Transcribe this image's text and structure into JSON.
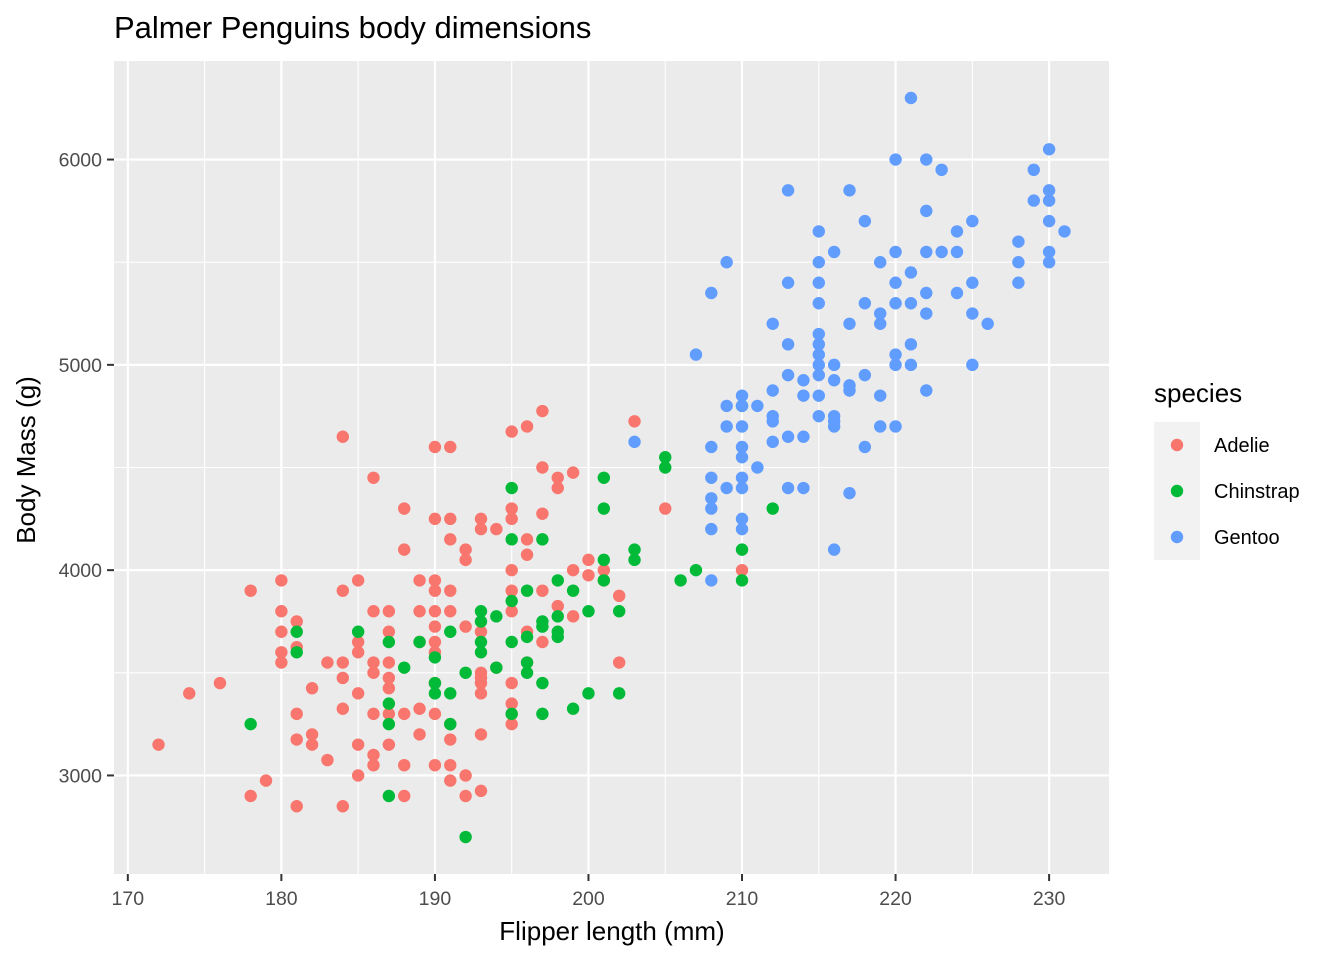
{
  "chart_data": {
    "type": "scatter",
    "title": "Palmer Penguins body dimensions",
    "xlabel": "Flipper length (mm)",
    "ylabel": "Body Mass (g)",
    "xlim": [
      169.1,
      233.9
    ],
    "ylim": [
      2520,
      6480
    ],
    "x_ticks": [
      170,
      180,
      190,
      200,
      210,
      220,
      230
    ],
    "y_ticks": [
      3000,
      4000,
      5000,
      6000
    ],
    "x_tick_labels": [
      "170",
      "180",
      "190",
      "200",
      "210",
      "220",
      "230"
    ],
    "y_tick_labels": [
      "3000",
      "4000",
      "5000",
      "6000"
    ],
    "grid": true,
    "legend": {
      "title": "species",
      "position": "right"
    },
    "series": [
      {
        "name": "Adelie",
        "color": "#F8766D",
        "points": [
          [
            172,
            3150
          ],
          [
            174,
            3400
          ],
          [
            176,
            3450
          ],
          [
            178,
            2900
          ],
          [
            178,
            3900
          ],
          [
            179,
            2975
          ],
          [
            180,
            3550
          ],
          [
            180,
            3600
          ],
          [
            180,
            3700
          ],
          [
            180,
            3800
          ],
          [
            180,
            3950
          ],
          [
            181,
            2850
          ],
          [
            181,
            3175
          ],
          [
            181,
            3300
          ],
          [
            181,
            3625
          ],
          [
            181,
            3750
          ],
          [
            182,
            3150
          ],
          [
            182,
            3200
          ],
          [
            182,
            3425
          ],
          [
            183,
            3075
          ],
          [
            183,
            3550
          ],
          [
            184,
            2850
          ],
          [
            184,
            3325
          ],
          [
            184,
            3475
          ],
          [
            184,
            3550
          ],
          [
            184,
            3900
          ],
          [
            184,
            4650
          ],
          [
            185,
            3000
          ],
          [
            185,
            3150
          ],
          [
            185,
            3400
          ],
          [
            185,
            3600
          ],
          [
            185,
            3650
          ],
          [
            185,
            3950
          ],
          [
            186,
            3050
          ],
          [
            186,
            3100
          ],
          [
            186,
            3300
          ],
          [
            186,
            3500
          ],
          [
            186,
            3550
          ],
          [
            186,
            3800
          ],
          [
            186,
            4450
          ],
          [
            187,
            3150
          ],
          [
            187,
            3300
          ],
          [
            187,
            3425
          ],
          [
            187,
            3475
          ],
          [
            187,
            3550
          ],
          [
            187,
            3700
          ],
          [
            187,
            3800
          ],
          [
            188,
            2900
          ],
          [
            188,
            3050
          ],
          [
            188,
            3300
          ],
          [
            188,
            4100
          ],
          [
            188,
            4300
          ],
          [
            189,
            3200
          ],
          [
            189,
            3325
          ],
          [
            189,
            3650
          ],
          [
            189,
            3800
          ],
          [
            189,
            3950
          ],
          [
            190,
            3050
          ],
          [
            190,
            3300
          ],
          [
            190,
            3450
          ],
          [
            190,
            3600
          ],
          [
            190,
            3650
          ],
          [
            190,
            3725
          ],
          [
            190,
            3800
          ],
          [
            190,
            3900
          ],
          [
            190,
            3950
          ],
          [
            190,
            4250
          ],
          [
            190,
            4600
          ],
          [
            191,
            2975
          ],
          [
            191,
            3050
          ],
          [
            191,
            3175
          ],
          [
            191,
            3250
          ],
          [
            191,
            3800
          ],
          [
            191,
            3900
          ],
          [
            191,
            4150
          ],
          [
            191,
            4250
          ],
          [
            191,
            4600
          ],
          [
            192,
            2900
          ],
          [
            192,
            3000
          ],
          [
            192,
            3725
          ],
          [
            192,
            4050
          ],
          [
            192,
            4100
          ],
          [
            193,
            2925
          ],
          [
            193,
            3200
          ],
          [
            193,
            3400
          ],
          [
            193,
            3450
          ],
          [
            193,
            3475
          ],
          [
            193,
            3500
          ],
          [
            193,
            3700
          ],
          [
            193,
            4200
          ],
          [
            193,
            4250
          ],
          [
            194,
            3525
          ],
          [
            194,
            4200
          ],
          [
            195,
            3250
          ],
          [
            195,
            3300
          ],
          [
            195,
            3350
          ],
          [
            195,
            3450
          ],
          [
            195,
            3800
          ],
          [
            195,
            3900
          ],
          [
            195,
            4000
          ],
          [
            195,
            4250
          ],
          [
            195,
            4300
          ],
          [
            195,
            4675
          ],
          [
            196,
            3550
          ],
          [
            196,
            3700
          ],
          [
            196,
            4075
          ],
          [
            196,
            4150
          ],
          [
            196,
            4700
          ],
          [
            197,
            3650
          ],
          [
            197,
            3900
          ],
          [
            197,
            4275
          ],
          [
            197,
            4500
          ],
          [
            197,
            4775
          ],
          [
            198,
            3825
          ],
          [
            198,
            4400
          ],
          [
            198,
            4450
          ],
          [
            199,
            3775
          ],
          [
            199,
            4000
          ],
          [
            199,
            4475
          ],
          [
            200,
            3975
          ],
          [
            200,
            4050
          ],
          [
            201,
            3950
          ],
          [
            201,
            4000
          ],
          [
            202,
            3550
          ],
          [
            202,
            3875
          ],
          [
            203,
            4725
          ],
          [
            205,
            4300
          ],
          [
            210,
            4000
          ]
        ]
      },
      {
        "name": "Chinstrap",
        "color": "#00BA38",
        "points": [
          [
            178,
            3250
          ],
          [
            181,
            3600
          ],
          [
            181,
            3700
          ],
          [
            185,
            3700
          ],
          [
            187,
            2900
          ],
          [
            187,
            3250
          ],
          [
            187,
            3350
          ],
          [
            187,
            3650
          ],
          [
            188,
            3525
          ],
          [
            189,
            3650
          ],
          [
            190,
            3400
          ],
          [
            190,
            3450
          ],
          [
            190,
            3575
          ],
          [
            191,
            3250
          ],
          [
            191,
            3400
          ],
          [
            191,
            3700
          ],
          [
            192,
            2700
          ],
          [
            192,
            3500
          ],
          [
            193,
            3600
          ],
          [
            193,
            3650
          ],
          [
            193,
            3750
          ],
          [
            193,
            3800
          ],
          [
            194,
            3525
          ],
          [
            194,
            3775
          ],
          [
            195,
            3300
          ],
          [
            195,
            3650
          ],
          [
            195,
            3850
          ],
          [
            195,
            4150
          ],
          [
            195,
            4400
          ],
          [
            196,
            3500
          ],
          [
            196,
            3550
          ],
          [
            196,
            3675
          ],
          [
            196,
            3900
          ],
          [
            197,
            3300
          ],
          [
            197,
            3450
          ],
          [
            197,
            3725
          ],
          [
            197,
            3750
          ],
          [
            197,
            4150
          ],
          [
            198,
            3675
          ],
          [
            198,
            3700
          ],
          [
            198,
            3775
          ],
          [
            198,
            3950
          ],
          [
            199,
            3325
          ],
          [
            199,
            3900
          ],
          [
            200,
            3400
          ],
          [
            200,
            3800
          ],
          [
            201,
            3950
          ],
          [
            201,
            4050
          ],
          [
            201,
            4300
          ],
          [
            201,
            4450
          ],
          [
            202,
            3400
          ],
          [
            202,
            3800
          ],
          [
            203,
            4050
          ],
          [
            203,
            4100
          ],
          [
            205,
            4500
          ],
          [
            205,
            4550
          ],
          [
            206,
            3950
          ],
          [
            207,
            4000
          ],
          [
            210,
            3950
          ],
          [
            210,
            4100
          ],
          [
            210,
            4800
          ],
          [
            212,
            4300
          ]
        ]
      },
      {
        "name": "Gentoo",
        "color": "#619CFF",
        "points": [
          [
            203,
            4625
          ],
          [
            207,
            5050
          ],
          [
            208,
            3950
          ],
          [
            208,
            4200
          ],
          [
            208,
            4300
          ],
          [
            208,
            4350
          ],
          [
            208,
            4450
          ],
          [
            208,
            4600
          ],
          [
            208,
            5350
          ],
          [
            209,
            4400
          ],
          [
            209,
            4700
          ],
          [
            209,
            4800
          ],
          [
            209,
            5500
          ],
          [
            210,
            4200
          ],
          [
            210,
            4250
          ],
          [
            210,
            4400
          ],
          [
            210,
            4450
          ],
          [
            210,
            4550
          ],
          [
            210,
            4600
          ],
          [
            210,
            4700
          ],
          [
            210,
            4800
          ],
          [
            210,
            4850
          ],
          [
            211,
            4500
          ],
          [
            211,
            4800
          ],
          [
            212,
            4625
          ],
          [
            212,
            4725
          ],
          [
            212,
            4750
          ],
          [
            212,
            4875
          ],
          [
            212,
            5200
          ],
          [
            213,
            4400
          ],
          [
            213,
            4650
          ],
          [
            213,
            4950
          ],
          [
            213,
            5100
          ],
          [
            213,
            5400
          ],
          [
            213,
            5850
          ],
          [
            214,
            4400
          ],
          [
            214,
            4650
          ],
          [
            214,
            4850
          ],
          [
            214,
            4925
          ],
          [
            215,
            4750
          ],
          [
            215,
            4850
          ],
          [
            215,
            4950
          ],
          [
            215,
            5000
          ],
          [
            215,
            5050
          ],
          [
            215,
            5100
          ],
          [
            215,
            5150
          ],
          [
            215,
            5300
          ],
          [
            215,
            5400
          ],
          [
            215,
            5500
          ],
          [
            215,
            5650
          ],
          [
            216,
            4100
          ],
          [
            216,
            4700
          ],
          [
            216,
            4725
          ],
          [
            216,
            4750
          ],
          [
            216,
            4925
          ],
          [
            216,
            5000
          ],
          [
            216,
            5550
          ],
          [
            217,
            4375
          ],
          [
            217,
            4875
          ],
          [
            217,
            4900
          ],
          [
            217,
            5200
          ],
          [
            217,
            5850
          ],
          [
            218,
            4600
          ],
          [
            218,
            4950
          ],
          [
            218,
            5300
          ],
          [
            218,
            5700
          ],
          [
            219,
            4700
          ],
          [
            219,
            4850
          ],
          [
            219,
            5200
          ],
          [
            219,
            5250
          ],
          [
            219,
            5500
          ],
          [
            220,
            4700
          ],
          [
            220,
            5000
          ],
          [
            220,
            5050
          ],
          [
            220,
            5300
          ],
          [
            220,
            5400
          ],
          [
            220,
            5550
          ],
          [
            220,
            6000
          ],
          [
            221,
            5000
          ],
          [
            221,
            5100
          ],
          [
            221,
            5300
          ],
          [
            221,
            5450
          ],
          [
            221,
            6300
          ],
          [
            222,
            4875
          ],
          [
            222,
            5250
          ],
          [
            222,
            5350
          ],
          [
            222,
            5550
          ],
          [
            222,
            5750
          ],
          [
            222,
            6000
          ],
          [
            223,
            5550
          ],
          [
            223,
            5950
          ],
          [
            224,
            5350
          ],
          [
            224,
            5550
          ],
          [
            224,
            5650
          ],
          [
            225,
            5000
          ],
          [
            225,
            5250
          ],
          [
            225,
            5400
          ],
          [
            225,
            5700
          ],
          [
            226,
            5200
          ],
          [
            228,
            5400
          ],
          [
            228,
            5500
          ],
          [
            228,
            5600
          ],
          [
            229,
            5800
          ],
          [
            229,
            5950
          ],
          [
            230,
            5500
          ],
          [
            230,
            5550
          ],
          [
            230,
            5700
          ],
          [
            230,
            5800
          ],
          [
            230,
            5850
          ],
          [
            230,
            6050
          ],
          [
            231,
            5650
          ]
        ]
      }
    ]
  }
}
